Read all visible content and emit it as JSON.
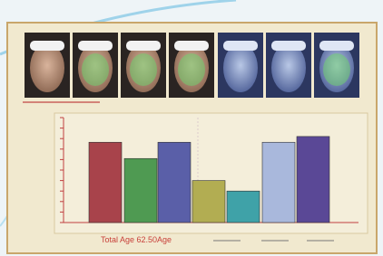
{
  "chart_data": {
    "type": "bar",
    "categories": [
      null,
      null,
      null,
      null,
      null,
      null,
      null
    ],
    "values": [
      76.5,
      61,
      76.5,
      40,
      30,
      76.5,
      82
    ],
    "colors": [
      "#a8434b",
      "#4f9a52",
      "#5a5fa8",
      "#b2ad52",
      "#3fa2a8",
      "#a9b8dc",
      "#5a4896"
    ],
    "ylim": [
      0,
      100
    ],
    "annotation": "Total Age 62.50Age"
  }
}
